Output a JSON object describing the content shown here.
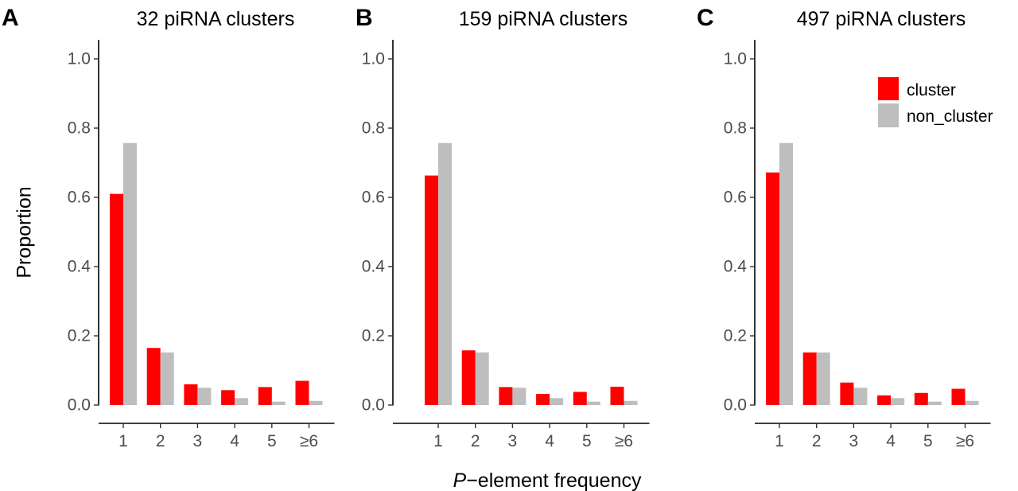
{
  "figure": {
    "ylabel": "Proportion",
    "xlabel_italic": "P",
    "xlabel_rest": "−element frequency"
  },
  "colors": {
    "cluster": "#ff0000",
    "non_cluster": "#bebebe"
  },
  "legend": {
    "position": "top-right of panel C",
    "entries": [
      "cluster",
      "non_cluster"
    ]
  },
  "chart_data": [
    {
      "panel": "A",
      "type": "bar",
      "title": "32 piRNA clusters",
      "categories": [
        "1",
        "2",
        "3",
        "4",
        "5",
        "≥6"
      ],
      "series": [
        {
          "name": "cluster",
          "values": [
            0.61,
            0.165,
            0.06,
            0.043,
            0.052,
            0.07
          ]
        },
        {
          "name": "non_cluster",
          "values": [
            0.757,
            0.152,
            0.05,
            0.02,
            0.01,
            0.012
          ]
        }
      ],
      "ylim": [
        0,
        1.0
      ],
      "yticks": [
        "0.0",
        "0.2",
        "0.4",
        "0.6",
        "0.8",
        "1.0"
      ]
    },
    {
      "panel": "B",
      "type": "bar",
      "title": "159 piRNA clusters",
      "categories": [
        "1",
        "2",
        "3",
        "4",
        "5",
        "≥6"
      ],
      "series": [
        {
          "name": "cluster",
          "values": [
            0.663,
            0.158,
            0.052,
            0.032,
            0.038,
            0.053
          ]
        },
        {
          "name": "non_cluster",
          "values": [
            0.757,
            0.152,
            0.05,
            0.02,
            0.01,
            0.012
          ]
        }
      ],
      "ylim": [
        0,
        1.0
      ],
      "yticks": [
        "0.0",
        "0.2",
        "0.4",
        "0.6",
        "0.8",
        "1.0"
      ]
    },
    {
      "panel": "C",
      "type": "bar",
      "title": "497 piRNA clusters",
      "categories": [
        "1",
        "2",
        "3",
        "4",
        "5",
        "≥6"
      ],
      "series": [
        {
          "name": "cluster",
          "values": [
            0.672,
            0.152,
            0.065,
            0.028,
            0.035,
            0.047
          ]
        },
        {
          "name": "non_cluster",
          "values": [
            0.757,
            0.152,
            0.05,
            0.02,
            0.01,
            0.012
          ]
        }
      ],
      "ylim": [
        0,
        1.0
      ],
      "yticks": [
        "0.0",
        "0.2",
        "0.4",
        "0.6",
        "0.8",
        "1.0"
      ]
    }
  ]
}
